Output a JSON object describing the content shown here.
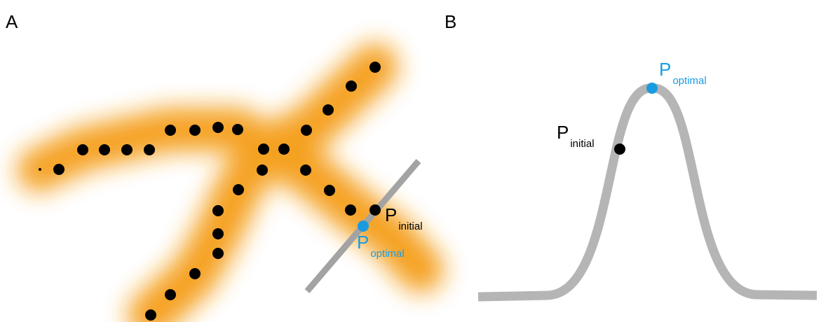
{
  "panels": {
    "a": {
      "letter": "A"
    },
    "b": {
      "letter": "B"
    }
  },
  "labels": {
    "initial": {
      "main": "P",
      "sub": "initial"
    },
    "optimal": {
      "main": "P",
      "sub": "optimal"
    }
  },
  "colors": {
    "glow": "#f49c16",
    "dot": "#000000",
    "optimal": "#1a9be0",
    "line": "#b0b0b0"
  }
}
